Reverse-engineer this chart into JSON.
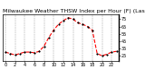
{
  "title": "Milwaukee Weather THSW Index per Hour (F) (Last 24 Hours)",
  "title_fontsize": 4.5,
  "line_color": "#ff0000",
  "marker_color": "#000000",
  "marker_size": 1.2,
  "line_style": "--",
  "line_width": 0.8,
  "background_color": "#ffffff",
  "grid_color": "#999999",
  "ytick_labels": [
    "75",
    "65",
    "55",
    "45",
    "35",
    "25"
  ],
  "ytick_values": [
    75,
    65,
    55,
    45,
    35,
    25
  ],
  "ylim": [
    18,
    82
  ],
  "xlim": [
    -0.5,
    23.5
  ],
  "hours": [
    0,
    1,
    2,
    3,
    4,
    5,
    6,
    7,
    8,
    9,
    10,
    11,
    12,
    13,
    14,
    15,
    16,
    17,
    18,
    19,
    20,
    21,
    22,
    23
  ],
  "values": [
    30,
    28,
    26,
    28,
    30,
    30,
    29,
    31,
    38,
    50,
    60,
    68,
    73,
    77,
    75,
    70,
    68,
    65,
    60,
    28,
    25,
    27,
    30,
    31
  ],
  "xtick_positions": [
    0,
    2,
    4,
    6,
    8,
    10,
    12,
    14,
    16,
    18,
    20,
    22
  ],
  "xtick_labels": [
    "0",
    "2",
    "4",
    "6",
    "8",
    "10",
    "12",
    "14",
    "16",
    "18",
    "20",
    "22"
  ],
  "xtick_fontsize": 3.5,
  "ytick_fontsize": 3.5,
  "grid_positions": [
    0,
    2,
    4,
    6,
    8,
    10,
    12,
    14,
    16,
    18,
    20,
    22
  ],
  "fig_width": 1.6,
  "fig_height": 0.87,
  "dpi": 100
}
